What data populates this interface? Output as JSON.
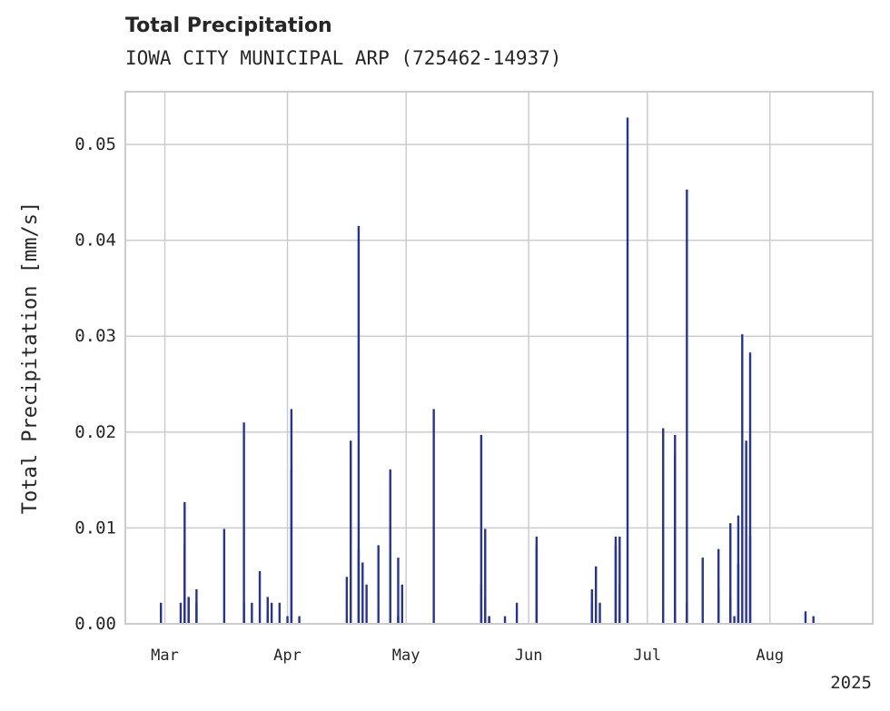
{
  "chart_data": {
    "type": "bar",
    "title": "Total Precipitation",
    "subtitle": "IOWA CITY MUNICIPAL ARP (725462-14937)",
    "xlabel": "",
    "ylabel": "Total Precipitation [mm/s]",
    "year_label": "2025",
    "xlim": [
      "2025-02-19",
      "2025-08-27"
    ],
    "ylim": [
      0,
      0.0555
    ],
    "yticks": [
      0.0,
      0.01,
      0.02,
      0.03,
      0.04,
      0.05
    ],
    "ytick_labels": [
      "0.00",
      "0.01",
      "0.02",
      "0.03",
      "0.04",
      "0.05"
    ],
    "xticks": [
      "2025-03-01",
      "2025-04-01",
      "2025-05-01",
      "2025-06-01",
      "2025-07-01",
      "2025-08-01"
    ],
    "xtick_labels": [
      "Mar",
      "Apr",
      "May",
      "Jun",
      "Jul",
      "Aug"
    ],
    "grid": true,
    "color": "#26339a",
    "series": [
      {
        "x": [
          "2025-02-28",
          "2025-03-05",
          "2025-03-06",
          "2025-03-06",
          "2025-03-07",
          "2025-03-07",
          "2025-03-09",
          "2025-03-09",
          "2025-03-16",
          "2025-03-21",
          "2025-03-21",
          "2025-03-23",
          "2025-03-25",
          "2025-03-27",
          "2025-03-27",
          "2025-03-28",
          "2025-03-30",
          "2025-04-01",
          "2025-04-02",
          "2025-04-02",
          "2025-04-04",
          "2025-04-16",
          "2025-04-17",
          "2025-04-19",
          "2025-04-19",
          "2025-04-20",
          "2025-04-21",
          "2025-04-24",
          "2025-04-27",
          "2025-04-29",
          "2025-04-29",
          "2025-04-30",
          "2025-05-08",
          "2025-05-20",
          "2025-05-20",
          "2025-05-21",
          "2025-05-21",
          "2025-05-22",
          "2025-05-22",
          "2025-05-26",
          "2025-05-29",
          "2025-06-03",
          "2025-06-03",
          "2025-06-17",
          "2025-06-17",
          "2025-06-18",
          "2025-06-19",
          "2025-06-23",
          "2025-06-23",
          "2025-06-24",
          "2025-06-24",
          "2025-06-26",
          "2025-07-05",
          "2025-07-08",
          "2025-07-08",
          "2025-07-11",
          "2025-07-11",
          "2025-07-15",
          "2025-07-19",
          "2025-07-19",
          "2025-07-22",
          "2025-07-22",
          "2025-07-23",
          "2025-07-24",
          "2025-07-24",
          "2025-07-25",
          "2025-07-26",
          "2025-07-27",
          "2025-07-27",
          "2025-08-10",
          "2025-08-12"
        ],
        "values": [
          0.0022,
          0.0022,
          0.0127,
          0.0082,
          0.0028,
          0.0028,
          0.0036,
          0.0022,
          0.0099,
          0.021,
          0.0022,
          0.0022,
          0.0055,
          0.0028,
          0.0013,
          0.0022,
          0.0022,
          0.0008,
          0.0224,
          0.0161,
          0.0008,
          0.0049,
          0.0191,
          0.0078,
          0.0415,
          0.0064,
          0.0041,
          0.0082,
          0.0161,
          0.0069,
          0.0008,
          0.0041,
          0.0224,
          0.0041,
          0.0197,
          0.0099,
          0.0028,
          0.0008,
          0.0008,
          0.0008,
          0.0022,
          0.0082,
          0.0091,
          0.0022,
          0.0036,
          0.006,
          0.0022,
          0.0082,
          0.0091,
          0.0041,
          0.0091,
          0.0528,
          0.0204,
          0.0177,
          0.0197,
          0.0022,
          0.0453,
          0.0069,
          0.0078,
          0.0036,
          0.0105,
          0.0028,
          0.0008,
          0.0062,
          0.0113,
          0.0302,
          0.0191,
          0.0283,
          0.0091,
          0.0013,
          0.0008
        ]
      }
    ]
  }
}
